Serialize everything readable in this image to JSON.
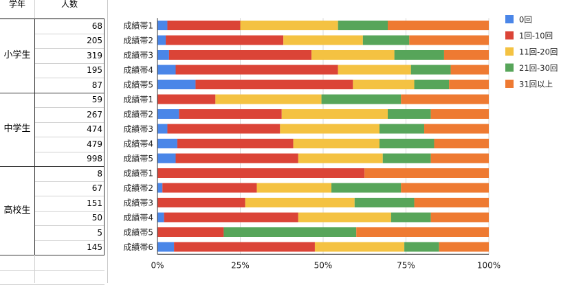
{
  "sheet": {
    "col_headers": [
      "学年",
      "人数"
    ],
    "groups": [
      {
        "label": "小学生",
        "counts": [
          "68",
          "205",
          "319",
          "195",
          "87"
        ]
      },
      {
        "label": "中学生",
        "counts": [
          "59",
          "267",
          "474",
          "479",
          "998"
        ]
      },
      {
        "label": "高校生",
        "counts": [
          "8",
          "67",
          "151",
          "50",
          "5",
          "145"
        ]
      }
    ]
  },
  "chart_data": {
    "type": "bar",
    "orientation": "horizontal",
    "stacked": "percent",
    "categories": [
      "成績帯1",
      "成績帯2",
      "成績帯3",
      "成績帯4",
      "成績帯5",
      "成績帯1",
      "成績帯2",
      "成績帯3",
      "成績帯4",
      "成績帯5",
      "成績帯1",
      "成績帯2",
      "成績帯3",
      "成績帯4",
      "成績帯5",
      "成績帯6"
    ],
    "series": [
      {
        "name": "0回",
        "color": "#4a86e8",
        "values": [
          3,
          2.5,
          3.5,
          5.5,
          11.5,
          0,
          6.5,
          3,
          6,
          5.5,
          0,
          1.5,
          0,
          2,
          0,
          5
        ]
      },
      {
        "name": "1回-10回",
        "color": "#db4437",
        "values": [
          22,
          35.5,
          43,
          49,
          47.5,
          17.5,
          31,
          34,
          35,
          37,
          62.5,
          28.5,
          26.5,
          40.5,
          20,
          42.5
        ]
      },
      {
        "name": "11回-20回",
        "color": "#f4c242",
        "values": [
          29.5,
          24,
          25,
          22,
          18.5,
          32,
          32,
          30,
          26,
          25.5,
          0,
          22.5,
          33,
          28,
          0,
          27
        ]
      },
      {
        "name": "21回-30回",
        "color": "#57a55a",
        "values": [
          15,
          14,
          15,
          12,
          10.5,
          24,
          13,
          13.5,
          16.5,
          14.5,
          0,
          21,
          18,
          12,
          40,
          10.5
        ]
      },
      {
        "name": "31回以上",
        "color": "#ee7a32",
        "values": [
          30.5,
          24,
          13.5,
          11.5,
          12,
          26.5,
          17.5,
          19.5,
          16.5,
          17.5,
          37.5,
          26.5,
          22.5,
          17.5,
          40,
          15
        ]
      }
    ],
    "x_tick_labels": [
      "0%",
      "25%",
      "50%",
      "75%",
      "100%"
    ],
    "xlim": [
      0,
      100
    ],
    "legend_position": "right",
    "title": "",
    "xlabel": "",
    "ylabel": ""
  }
}
